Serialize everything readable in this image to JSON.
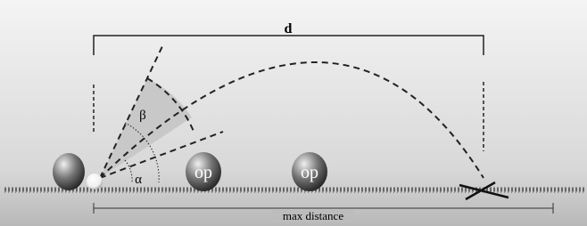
{
  "diagram": {
    "distance_label": "d",
    "angle_beta": "β",
    "angle_alpha": "α",
    "opponents": [
      {
        "label": "op"
      },
      {
        "label": "op"
      }
    ],
    "axis_label": "max distance"
  }
}
